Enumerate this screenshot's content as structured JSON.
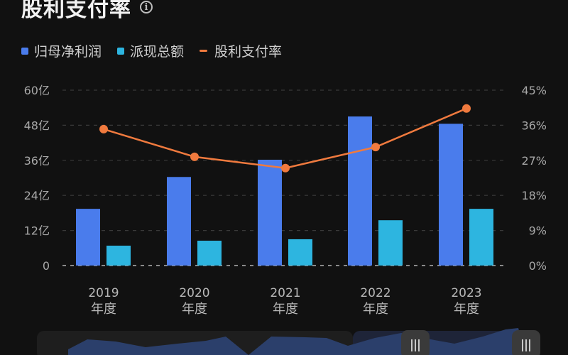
{
  "header": {
    "title": "股利支付率",
    "info_icon": "info-icon"
  },
  "legend": [
    {
      "label": "归母净利润",
      "color": "#4a7cec",
      "shape": "square"
    },
    {
      "label": "派现总额",
      "color": "#2db5e0",
      "shape": "square"
    },
    {
      "label": "股利支付率",
      "color": "#f07a3e",
      "shape": "line"
    }
  ],
  "colors": {
    "background": "#111111",
    "net_profit": "#4a7cec",
    "dividend": "#2db5e0",
    "payout_ratio": "#f07a3e",
    "grid": "#3a3a3a",
    "axis_text": "#a8a8a8",
    "slider_fill": "#2b3f6b",
    "slider_track": "#1e1e1e",
    "slider_handle": "#3a3a3a"
  },
  "chart_data": {
    "type": "bar",
    "title": "股利支付率",
    "categories": [
      "2019\n年度",
      "2020\n年度",
      "2021\n年度",
      "2022\n年度",
      "2023\n年度"
    ],
    "category_years": [
      "2019",
      "2020",
      "2021",
      "2022",
      "2023"
    ],
    "category_suffix": "年度",
    "series": [
      {
        "name": "归母净利润",
        "type": "bar",
        "axis": "left",
        "unit": "亿",
        "values": [
          19.4,
          30.3,
          36.2,
          51.0,
          48.5
        ]
      },
      {
        "name": "派现总额",
        "type": "bar",
        "axis": "left",
        "unit": "亿",
        "values": [
          6.8,
          8.5,
          9.0,
          15.5,
          19.4
        ]
      },
      {
        "name": "股利支付率",
        "type": "line",
        "axis": "right",
        "unit": "%",
        "values": [
          35.0,
          27.9,
          25.0,
          30.4,
          40.3
        ]
      }
    ],
    "left_axis": {
      "ticks": [
        "0",
        "12亿",
        "24亿",
        "36亿",
        "48亿",
        "60亿"
      ],
      "range": [
        0,
        60
      ]
    },
    "right_axis": {
      "ticks": [
        "0%",
        "9%",
        "18%",
        "27%",
        "36%",
        "45%"
      ],
      "range": [
        0,
        45
      ]
    },
    "grid": true,
    "legend_position": "top-left"
  },
  "zoom_slider": {
    "handle_left_icon": "grip-icon",
    "handle_right_icon": "grip-icon"
  }
}
